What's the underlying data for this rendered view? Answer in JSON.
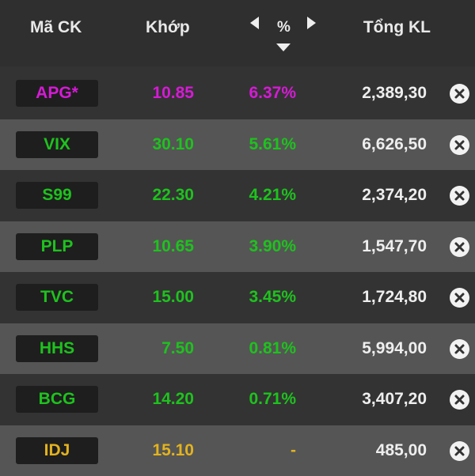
{
  "header": {
    "code_label": "Mã CK",
    "price_label": "Khớp",
    "pct_label": "%",
    "volume_label": "Tổng KL"
  },
  "colors": {
    "ceiling": "#d61ad6",
    "up": "#1ec21e",
    "reference": "#e3b31e"
  },
  "rows": [
    {
      "code": "APG*",
      "price": "10.85",
      "pct": "6.37%",
      "volume": "2,389,30",
      "status": "purple"
    },
    {
      "code": "VIX",
      "price": "30.10",
      "pct": "5.61%",
      "volume": "6,626,50",
      "status": "green"
    },
    {
      "code": "S99",
      "price": "22.30",
      "pct": "4.21%",
      "volume": "2,374,20",
      "status": "green"
    },
    {
      "code": "PLP",
      "price": "10.65",
      "pct": "3.90%",
      "volume": "1,547,70",
      "status": "green"
    },
    {
      "code": "TVC",
      "price": "15.00",
      "pct": "3.45%",
      "volume": "1,724,80",
      "status": "green"
    },
    {
      "code": "HHS",
      "price": "7.50",
      "pct": "0.81%",
      "volume": "5,994,00",
      "status": "green"
    },
    {
      "code": "BCG",
      "price": "14.20",
      "pct": "0.71%",
      "volume": "3,407,20",
      "status": "green"
    },
    {
      "code": "IDJ",
      "price": "15.10",
      "pct": "-",
      "volume": "485,00",
      "status": "yellow"
    }
  ]
}
